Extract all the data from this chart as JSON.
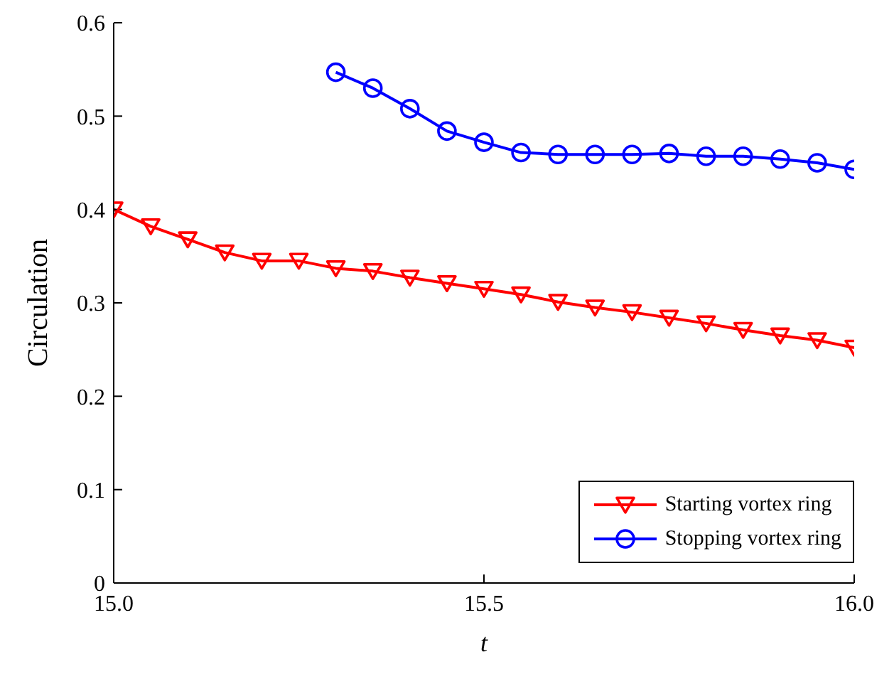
{
  "chart_data": {
    "type": "line",
    "xlabel": "t",
    "ylabel": "Circulation",
    "xlim": [
      15,
      16
    ],
    "xticks": [
      {
        "value": 15,
        "label": "15.0"
      },
      {
        "value": 15.5,
        "label": "15.5"
      },
      {
        "value": 16,
        "label": "16.0"
      }
    ],
    "ylim": [
      0,
      0.6
    ],
    "yticks": [
      0,
      0.1,
      0.2,
      0.3,
      0.4,
      0.5,
      0.6
    ],
    "grid": false,
    "legend": "bottom right",
    "line_style": "solid",
    "series": [
      {
        "name": "Starting vortex ring",
        "color": "#ff0000",
        "marker": "triangle",
        "x": [
          15,
          15.05,
          15.1,
          15.15,
          15.2,
          15.25,
          15.3,
          15.35,
          15.4,
          15.45,
          15.5,
          15.55,
          15.6,
          15.65,
          15.7,
          15.75,
          15.8,
          15.85,
          15.9,
          15.95,
          16
        ],
        "values": [
          0.4,
          0.382,
          0.368,
          0.354,
          0.345,
          0.345,
          0.337,
          0.334,
          0.327,
          0.321,
          0.315,
          0.309,
          0.301,
          0.295,
          0.29,
          0.284,
          0.278,
          0.271,
          0.265,
          0.26,
          0.252
        ]
      },
      {
        "name": "Stopping vortex ring",
        "color": "#0000ff",
        "marker": "circle",
        "x": [
          15.3,
          15.35,
          15.4,
          15.45,
          15.5,
          15.55,
          15.6,
          15.65,
          15.7,
          15.75,
          15.8,
          15.85,
          15.9,
          15.95,
          16
        ],
        "values": [
          0.547,
          0.53,
          0.508,
          0.484,
          0.472,
          0.461,
          0.459,
          0.459,
          0.459,
          0.46,
          0.457,
          0.457,
          0.454,
          0.45,
          0.443
        ]
      }
    ]
  }
}
